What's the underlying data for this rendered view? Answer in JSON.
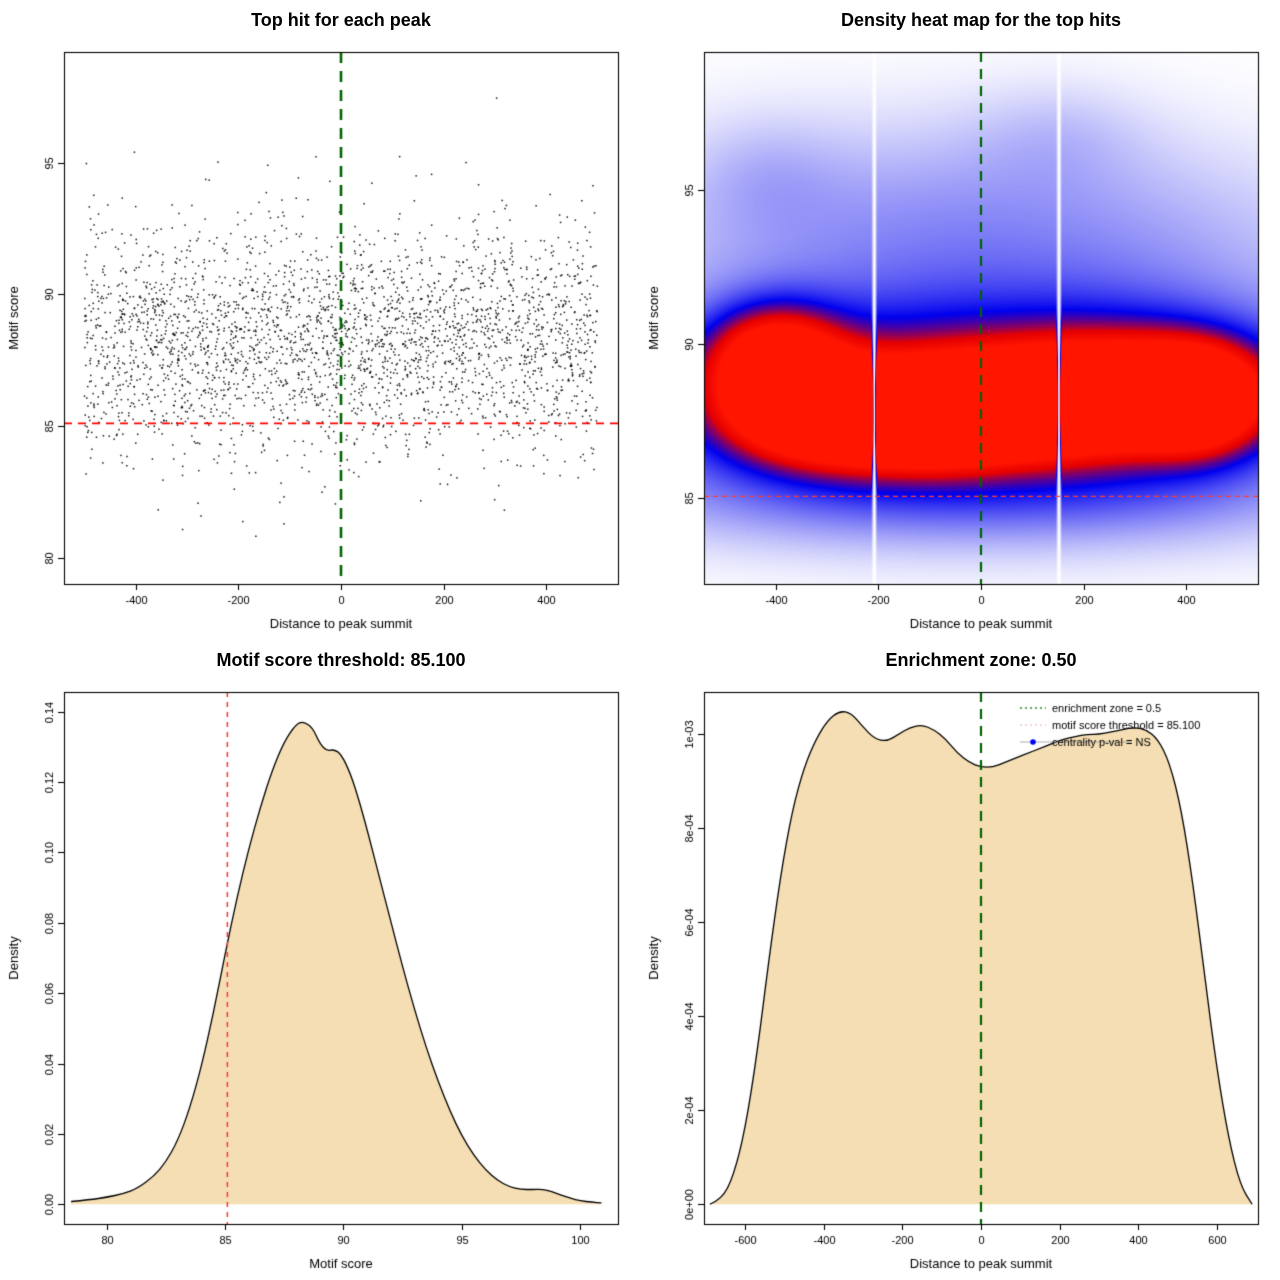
{
  "page": {
    "background": "#ffffff"
  },
  "chart_data": [
    {
      "type": "scatter",
      "title": "Top hit for each peak",
      "xlabel": "Distance to peak summit",
      "ylabel": "Motif score",
      "xlim": [
        -540,
        540
      ],
      "ylim": [
        79.0,
        99.2
      ],
      "xticks": [
        -400,
        -200,
        0,
        200,
        400
      ],
      "yticks": [
        80,
        85,
        90,
        95
      ],
      "points": {
        "n": 3000,
        "seed": 7,
        "x_min": -500,
        "x_max": 500,
        "y_mean": 88.2,
        "y_sd": 2.0,
        "y_sd_wide": 3.3,
        "wide_frac": 0.1,
        "y_min": 79.7,
        "y_max": 98.5,
        "color": "#000000",
        "size": 1.5
      },
      "lines": [
        {
          "orient": "h",
          "at": 85.1,
          "color": "#ff0000",
          "width": 1.7,
          "dash": [
            8,
            6
          ]
        },
        {
          "orient": "v",
          "at": 0,
          "color": "#006400",
          "width": 2.6,
          "dash": [
            11,
            8
          ]
        }
      ]
    },
    {
      "type": "heatmap",
      "title": "Density heat map for the top hits",
      "xlabel": "Distance to peak summit",
      "ylabel": "Motif score",
      "xlim": [
        -540,
        540
      ],
      "ylim": [
        82.2,
        99.5
      ],
      "xticks": [
        -400,
        -200,
        0,
        200,
        400
      ],
      "yticks": [
        85,
        90,
        95
      ],
      "blobs": [
        [
          -400,
          89.4,
          85,
          1.15,
          1.0
        ],
        [
          -330,
          87.8,
          110,
          1.05,
          0.8
        ],
        [
          -170,
          87.6,
          130,
          1.0,
          0.95
        ],
        [
          -60,
          87.8,
          100,
          1.0,
          0.75
        ],
        [
          100,
          88.0,
          120,
          1.05,
          0.78
        ],
        [
          300,
          88.4,
          150,
          1.15,
          0.95
        ],
        [
          425,
          88.2,
          80,
          1.1,
          0.85
        ],
        [
          0,
          88.3,
          520,
          2.3,
          0.55
        ],
        [
          -250,
          88.0,
          260,
          2.0,
          0.3
        ],
        [
          250,
          88.3,
          260,
          2.1,
          0.3
        ],
        [
          0,
          93.3,
          480,
          1.9,
          0.17
        ],
        [
          -80,
          95.6,
          420,
          1.9,
          0.08
        ],
        [
          0,
          84.8,
          500,
          1.1,
          0.13
        ],
        [
          150,
          96.8,
          120,
          1.2,
          0.07
        ],
        [
          -420,
          95.5,
          100,
          1.3,
          0.07
        ]
      ],
      "white_stripes": [
        -208,
        152
      ],
      "colormap": [
        [
          0,
          "#ffffff"
        ],
        [
          0.52,
          "#0000ee"
        ],
        [
          0.8,
          "#e60000"
        ],
        [
          1,
          "#ff1500"
        ]
      ],
      "lines": [
        {
          "orient": "h",
          "at": 85.05,
          "color": "#ff3b30",
          "width": 1.3,
          "dash": [
            5,
            4
          ]
        },
        {
          "orient": "v",
          "at": 0,
          "color": "#006400",
          "width": 2.2,
          "dash": [
            10,
            7
          ]
        }
      ]
    },
    {
      "type": "density",
      "title": "Motif score threshold: 85.100",
      "xlabel": "Motif score",
      "ylabel": "Density",
      "xlim": [
        78.2,
        101.6
      ],
      "ylim": [
        -0.0056,
        0.1456
      ],
      "xticks": [
        80,
        85,
        90,
        95,
        100
      ],
      "yticks": [
        0,
        0.02,
        0.04,
        0.06,
        0.08,
        0.1,
        0.12,
        0.14
      ],
      "ytick_format": "fixed2",
      "fill": "#f5deb3",
      "stroke": "#000000",
      "curve": {
        "x": [
          78.5,
          79.3,
          80,
          80.7,
          81.3,
          82,
          82.5,
          83,
          83.5,
          84,
          84.5,
          85,
          85.5,
          86,
          86.5,
          87,
          87.5,
          88,
          88.3,
          88.7,
          89,
          89.3,
          89.6,
          89.9,
          90.3,
          90.7,
          91.1,
          91.5,
          92,
          92.5,
          93,
          93.5,
          94,
          94.5,
          95,
          95.5,
          96,
          96.5,
          97,
          97.5,
          98,
          98.4,
          98.8,
          99.2,
          99.6,
          100,
          100.5,
          100.9
        ],
        "y": [
          0.0008,
          0.0013,
          0.002,
          0.003,
          0.0045,
          0.008,
          0.012,
          0.018,
          0.027,
          0.039,
          0.054,
          0.071,
          0.087,
          0.101,
          0.113,
          0.1235,
          0.1315,
          0.1365,
          0.1372,
          0.1355,
          0.131,
          0.1288,
          0.1293,
          0.128,
          0.1225,
          0.114,
          0.104,
          0.0935,
          0.0805,
          0.0675,
          0.0555,
          0.0445,
          0.035,
          0.0265,
          0.0195,
          0.014,
          0.0098,
          0.0068,
          0.005,
          0.0042,
          0.0042,
          0.0043,
          0.0036,
          0.0026,
          0.0017,
          0.001,
          0.0006,
          0.0004
        ]
      },
      "lines": [
        {
          "orient": "v",
          "at": 85.1,
          "color": "#ff3333",
          "width": 1.5,
          "dash": [
            5,
            5
          ]
        }
      ]
    },
    {
      "type": "density",
      "title": "Enrichment zone: 0.50",
      "xlabel": "Distance to peak summit",
      "ylabel": "Density",
      "xlim": [
        -705,
        705
      ],
      "ylim": [
        -4.2e-05,
        0.00109
      ],
      "xticks": [
        -600,
        -400,
        -200,
        0,
        200,
        400,
        600
      ],
      "yticks": [
        0,
        0.0002,
        0.0004,
        0.0006,
        0.0008,
        0.001
      ],
      "ytick_labels": [
        "0e+00",
        "2e-04",
        "4e-04",
        "6e-04",
        "8e-04",
        "1e-03"
      ],
      "fill": "#f5deb3",
      "stroke": "#000000",
      "curve": {
        "x": [
          -690,
          -660,
          -630,
          -600,
          -570,
          -540,
          -510,
          -480,
          -450,
          -420,
          -390,
          -360,
          -330,
          -300,
          -270,
          -240,
          -210,
          -180,
          -150,
          -120,
          -90,
          -60,
          -30,
          0,
          30,
          60,
          90,
          120,
          150,
          180,
          210,
          240,
          270,
          300,
          330,
          360,
          390,
          420,
          450,
          480,
          510,
          540,
          570,
          600,
          630,
          660,
          690
        ],
        "y": [
          0,
          1e-05,
          6e-05,
          0.00016,
          0.00032,
          0.00052,
          0.0007,
          0.00084,
          0.00093,
          0.00099,
          0.00103,
          0.00105,
          0.001045,
          0.001015,
          0.00099,
          0.000985,
          0.001,
          0.001015,
          0.00102,
          0.00101,
          0.00099,
          0.00096,
          0.00094,
          0.00093,
          0.00093,
          0.00094,
          0.00095,
          0.00096,
          0.00097,
          0.00098,
          0.00099,
          0.000995,
          0.001,
          0.001,
          0.001005,
          0.00101,
          0.001015,
          0.00101,
          0.00099,
          0.00094,
          0.00084,
          0.00068,
          0.00048,
          0.00029,
          0.00014,
          4e-05,
          0
        ]
      },
      "lines": [
        {
          "orient": "v",
          "at": 0,
          "color": "#006400",
          "width": 2.2,
          "dash": [
            10,
            7
          ]
        }
      ],
      "legend": {
        "items": [
          {
            "label": "enrichment zone = 0.5",
            "marker": "dotted-line",
            "color": "#2e8b2e"
          },
          {
            "label": "motif score threshold = 85.100",
            "marker": "dotted-line",
            "color": "#f6caca"
          },
          {
            "label": "centrality p-val = NS",
            "marker": "dot-line",
            "color": "#0000ff"
          }
        ]
      }
    }
  ]
}
